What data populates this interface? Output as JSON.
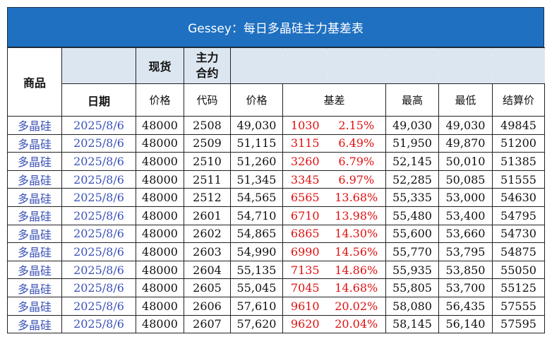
{
  "title": "Gessey：每日多晶硅主力基差表",
  "header": {
    "product": "商品",
    "spot": "现货",
    "main_contract": "主力\n合约",
    "date": "日期",
    "spot_price": "价格",
    "code": "代码",
    "price": "价格",
    "basis": "基差",
    "high": "最高",
    "low": "最低",
    "settle": "结算价"
  },
  "rows": [
    {
      "product": "多晶硅",
      "date": "2025/8/6",
      "spot": "48000",
      "code": "2508",
      "price": "49,030",
      "basis": "1030",
      "pct": "2.15%",
      "high": "49,030",
      "low": "49,030",
      "settle": "49845"
    },
    {
      "product": "多晶硅",
      "date": "2025/8/6",
      "spot": "48000",
      "code": "2509",
      "price": "51,115",
      "basis": "3115",
      "pct": "6.49%",
      "high": "51,950",
      "low": "49,870",
      "settle": "51200"
    },
    {
      "product": "多晶硅",
      "date": "2025/8/6",
      "spot": "48000",
      "code": "2510",
      "price": "51,260",
      "basis": "3260",
      "pct": "6.79%",
      "high": "52,145",
      "low": "50,010",
      "settle": "51385"
    },
    {
      "product": "多晶硅",
      "date": "2025/8/6",
      "spot": "48000",
      "code": "2511",
      "price": "51,345",
      "basis": "3345",
      "pct": "6.97%",
      "high": "52,285",
      "low": "50,085",
      "settle": "51555"
    },
    {
      "product": "多晶硅",
      "date": "2025/8/6",
      "spot": "48000",
      "code": "2512",
      "price": "54,565",
      "basis": "6565",
      "pct": "13.68%",
      "high": "55,335",
      "low": "53,000",
      "settle": "54630"
    },
    {
      "product": "多晶硅",
      "date": "2025/8/6",
      "spot": "48000",
      "code": "2601",
      "price": "54,710",
      "basis": "6710",
      "pct": "13.98%",
      "high": "55,480",
      "low": "53,400",
      "settle": "54795"
    },
    {
      "product": "多晶硅",
      "date": "2025/8/6",
      "spot": "48000",
      "code": "2602",
      "price": "54,865",
      "basis": "6865",
      "pct": "14.30%",
      "high": "55,600",
      "low": "53,660",
      "settle": "54730"
    },
    {
      "product": "多晶硅",
      "date": "2025/8/6",
      "spot": "48000",
      "code": "2603",
      "price": "54,990",
      "basis": "6990",
      "pct": "14.56%",
      "high": "55,770",
      "low": "53,795",
      "settle": "54875"
    },
    {
      "product": "多晶硅",
      "date": "2025/8/6",
      "spot": "48000",
      "code": "2604",
      "price": "55,135",
      "basis": "7135",
      "pct": "14.86%",
      "high": "55,935",
      "low": "53,850",
      "settle": "55050"
    },
    {
      "product": "多晶硅",
      "date": "2025/8/6",
      "spot": "48000",
      "code": "2605",
      "price": "55,045",
      "basis": "7045",
      "pct": "14.68%",
      "high": "55,805",
      "low": "53,700",
      "settle": "55125"
    },
    {
      "product": "多晶硅",
      "date": "2025/8/6",
      "spot": "48000",
      "code": "2606",
      "price": "57,610",
      "basis": "9610",
      "pct": "20.02%",
      "high": "58,080",
      "low": "56,435",
      "settle": "57555"
    },
    {
      "product": "多晶硅",
      "date": "2025/8/6",
      "spot": "48000",
      "code": "2607",
      "price": "57,620",
      "basis": "9620",
      "pct": "20.04%",
      "high": "58,145",
      "low": "56,140",
      "settle": "57595"
    }
  ],
  "colors": {
    "title_bg": "#1f70c1",
    "header_shade": "#dce6f1",
    "link_blue": "#3b52b8",
    "basis_red": "#e01010"
  }
}
